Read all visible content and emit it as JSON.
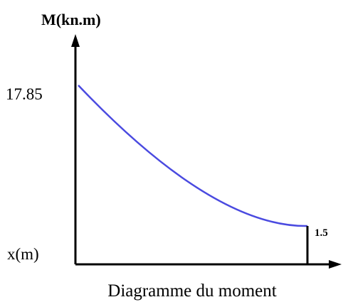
{
  "y_axis_label": "M(kn.m)",
  "value_label": "17.85",
  "x_axis_label": "x(m)",
  "end_label": "1.5",
  "caption": "Diagramme du moment"
}
